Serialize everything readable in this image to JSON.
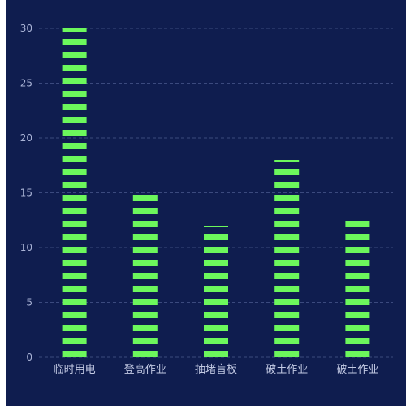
{
  "chart_data": {
    "type": "bar",
    "categories": [
      "临时用电",
      "登高作业",
      "抽堵盲板",
      "破土作业",
      "破土作业"
    ],
    "values": [
      30,
      15,
      12,
      18,
      13
    ],
    "ylim": [
      0,
      30
    ],
    "yticks": [
      0,
      5,
      10,
      15,
      20,
      25,
      30
    ],
    "grid": true,
    "legend": "none",
    "colors": {
      "background": "#0f1d4f",
      "bar": "#6cf75c",
      "gridline": "#3b4a7e",
      "tick_label": "#a9b3d6"
    }
  }
}
